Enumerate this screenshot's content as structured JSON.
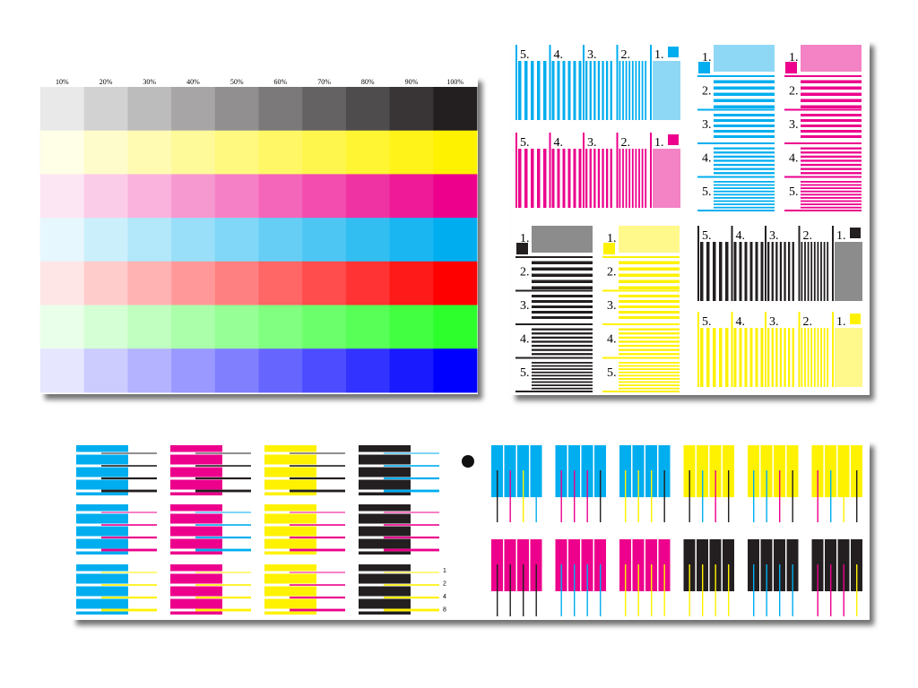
{
  "tint_chart": {
    "percent_labels": [
      "10%",
      "20%",
      "30%",
      "40%",
      "50%",
      "60%",
      "70%",
      "80%",
      "90%",
      "100%"
    ]
  },
  "line_panels": {
    "vertical_blocks": [
      {
        "labels": [
          "5.",
          "4.",
          "3.",
          "2.",
          "1."
        ]
      },
      {
        "labels": [
          "5.",
          "4.",
          "3.",
          "2.",
          "1."
        ]
      },
      {
        "labels": [
          "5.",
          "4.",
          "3.",
          "2.",
          "1."
        ]
      },
      {
        "labels": [
          "5.",
          "4.",
          "3.",
          "2.",
          "1."
        ]
      }
    ],
    "horizontal_blocks": [
      {
        "labels": [
          "1.",
          "2.",
          "3.",
          "4.",
          "5."
        ]
      },
      {
        "labels": [
          "1.",
          "2.",
          "3.",
          "4.",
          "5."
        ]
      },
      {
        "labels": [
          "1.",
          "2.",
          "3.",
          "4.",
          "5."
        ]
      },
      {
        "labels": [
          "1.",
          "2.",
          "3.",
          "4.",
          "5."
        ]
      }
    ]
  },
  "register_panel": {
    "scale_labels": [
      "1",
      "2",
      "4",
      "8"
    ]
  }
}
